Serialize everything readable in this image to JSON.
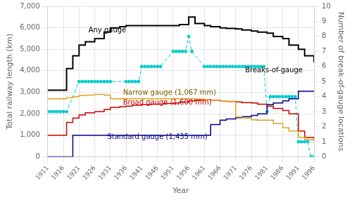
{
  "chart_data": {
    "type": "line",
    "xlabel": "Year",
    "ylabel": "Total railway length (km)",
    "y2label": "Number of break-of-gauge locations",
    "x": [
      1911,
      1917,
      1919,
      1921,
      1923,
      1926,
      1929,
      1931,
      1934,
      1936,
      1938,
      1941,
      1944,
      1946,
      1948,
      1951,
      1953,
      1956,
      1958,
      1961,
      1963,
      1966,
      1968,
      1971,
      1973,
      1976,
      1978,
      1981,
      1983,
      1986,
      1988,
      1991,
      1993,
      1996
    ],
    "xlim": [
      1911,
      1996
    ],
    "xticks": [
      1911,
      1916,
      1921,
      1926,
      1931,
      1936,
      1941,
      1946,
      1951,
      1956,
      1961,
      1966,
      1971,
      1976,
      1981,
      1986,
      1991,
      1996
    ],
    "ylim": [
      0,
      7000
    ],
    "yticks": [
      0,
      {
        "value": 1000,
        "label": "1,000"
      },
      {
        "value": 2000,
        "label": "2,000"
      },
      {
        "value": 3000,
        "label": "3,000"
      },
      {
        "value": 4000,
        "label": "4,000"
      },
      {
        "value": 5000,
        "label": "5,000"
      },
      {
        "value": 6000,
        "label": "6,000"
      },
      {
        "value": 7000,
        "label": "7,000"
      }
    ],
    "y2lim": [
      0,
      10
    ],
    "y2ticks": [
      0,
      1,
      2,
      3,
      4,
      5,
      6,
      7,
      8,
      9,
      10
    ],
    "grid": true,
    "series": [
      {
        "color": "#000000",
        "line_style": "steps",
        "values": [
          3100,
          4100,
          4700,
          5200,
          5350,
          5500,
          5800,
          6000,
          6050,
          6100,
          6100,
          6100,
          6100,
          6100,
          6100,
          6100,
          6150,
          6500,
          6200,
          6100,
          6050,
          6000,
          5970,
          5950,
          5900,
          5850,
          5800,
          5750,
          5600,
          5500,
          5200,
          5000,
          4700,
          4400
        ]
      },
      {
        "color": "#DAA520",
        "line_style": "steps",
        "values": [
          2700,
          2750,
          2800,
          2850,
          2870,
          2900,
          2870,
          2700,
          2700,
          2700,
          2700,
          2700,
          2700,
          2700,
          2700,
          2700,
          2700,
          2700,
          2680,
          2650,
          2640,
          2600,
          2570,
          1850,
          1800,
          1720,
          1700,
          1700,
          1550,
          1350,
          1200,
          900,
          800,
          750
        ]
      },
      {
        "color": "#CC0000",
        "line_style": "steps",
        "values": [
          1000,
          1600,
          1800,
          1950,
          2050,
          2100,
          2200,
          2300,
          2330,
          2360,
          2400,
          2430,
          2450,
          2450,
          2480,
          2500,
          2540,
          2600,
          2640,
          2650,
          2630,
          2600,
          2580,
          2550,
          2520,
          2500,
          2450,
          2350,
          2250,
          2150,
          2000,
          1200,
          900,
          750
        ]
      },
      {
        "color": "#00008B",
        "line_style": "steps",
        "values": [
          0,
          0,
          1000,
          1000,
          1000,
          1000,
          1000,
          1000,
          1000,
          1000,
          1000,
          1000,
          1000,
          1000,
          1000,
          1000,
          1000,
          1000,
          1000,
          1000,
          1500,
          1700,
          1760,
          1820,
          1870,
          1920,
          2000,
          2420,
          2500,
          2600,
          2700,
          3050,
          3050,
          3050
        ]
      },
      {
        "color": "#00CCCC",
        "line_style": "dashed",
        "marker": "circle",
        "axis": "y2",
        "x": [
          1911,
          1912,
          1913,
          1914,
          1915,
          1916,
          1917,
          1921,
          1922,
          1923,
          1924,
          1925,
          1926,
          1927,
          1928,
          1929,
          1930,
          1931,
          1936,
          1937,
          1938,
          1939,
          1940,
          1941,
          1942,
          1943,
          1944,
          1945,
          1946,
          1947,
          1951,
          1952,
          1953,
          1954,
          1955,
          1956,
          1957,
          1961,
          1962,
          1963,
          1964,
          1965,
          1966,
          1967,
          1968,
          1969,
          1970,
          1971,
          1972,
          1973,
          1974,
          1975,
          1976,
          1977,
          1978,
          1979,
          1980,
          1981,
          1982,
          1983,
          1984,
          1985,
          1986,
          1987,
          1988,
          1989,
          1990,
          1991,
          1992,
          1993,
          1994,
          1995,
          1996
        ],
        "values": [
          3,
          3,
          3,
          3,
          3,
          3,
          3,
          5,
          5,
          5,
          5,
          5,
          5,
          5,
          5,
          5,
          5,
          5,
          5,
          5,
          5,
          5,
          5,
          6,
          6,
          6,
          6,
          6,
          6,
          6,
          7,
          7,
          7,
          7,
          7,
          8,
          7,
          6,
          6,
          6,
          6,
          6,
          6,
          6,
          6,
          6,
          6,
          6,
          6,
          6,
          6,
          6,
          6,
          6,
          6,
          6,
          6,
          3,
          4,
          4,
          4,
          4,
          4,
          4,
          4,
          4,
          4,
          1,
          1,
          1,
          1,
          0,
          0
        ]
      }
    ],
    "annotations": [
      {
        "text": "Any gauge",
        "x": 1924,
        "y": 5700,
        "color": "#000000"
      },
      {
        "text": "Narrow gauge (1,067 mm)",
        "x": 1935,
        "y": 2820,
        "color": "#7B6000"
      },
      {
        "text": "Broad gauge (1,600 mm)",
        "x": 1935,
        "y": 2340,
        "color": "#CC0000"
      },
      {
        "text": "Standard gauge (1,435 mm)",
        "x": 1930,
        "y": 750,
        "color": "#00008B"
      },
      {
        "text": "Breaks-of-gauge",
        "x": 1974,
        "y": 5.5,
        "color": "#000000",
        "axis": "y2"
      }
    ]
  }
}
